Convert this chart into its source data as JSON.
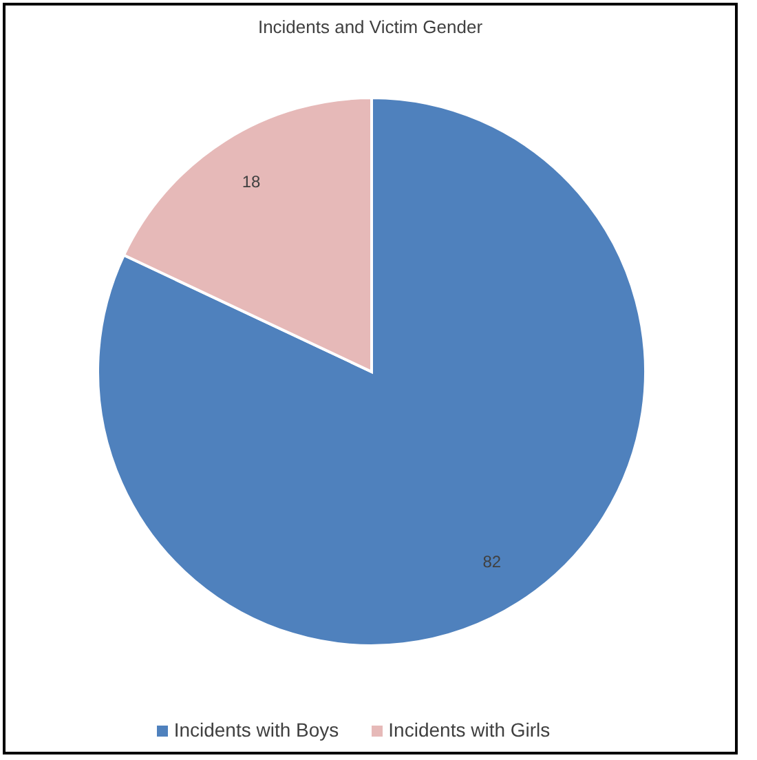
{
  "chart_data": {
    "type": "pie",
    "title": "Incidents and Victim Gender",
    "categories": [
      "Incidents with Boys",
      "Incidents with Girls"
    ],
    "values": [
      82,
      18
    ],
    "colors": [
      "#4f81bd",
      "#e6b9b8"
    ],
    "data_labels": true,
    "legend": "bottom"
  }
}
